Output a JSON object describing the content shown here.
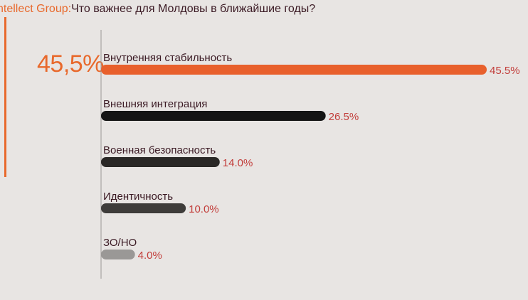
{
  "header": {
    "source": "ntellect Group:",
    "question": "Что важнее для Молдовы в ближайшие годы?"
  },
  "highlight": "45,5%",
  "chart_data": {
    "type": "bar",
    "orientation": "horizontal",
    "categories": [
      "Внутренняя стабильность",
      "Внешняя интеграция",
      "Военная безопасность",
      "Идентичность",
      "ЗО/НО"
    ],
    "values": [
      45.5,
      26.5,
      14.0,
      10.0,
      4.0
    ],
    "value_labels": [
      "45.5%",
      "26.5%",
      "14.0%",
      "10.0%",
      "4.0%"
    ],
    "colors": [
      "#e8602c",
      "#141414",
      "#2a2826",
      "#3e3c3a",
      "#9a9896"
    ],
    "xlim": [
      0,
      45.5
    ]
  }
}
